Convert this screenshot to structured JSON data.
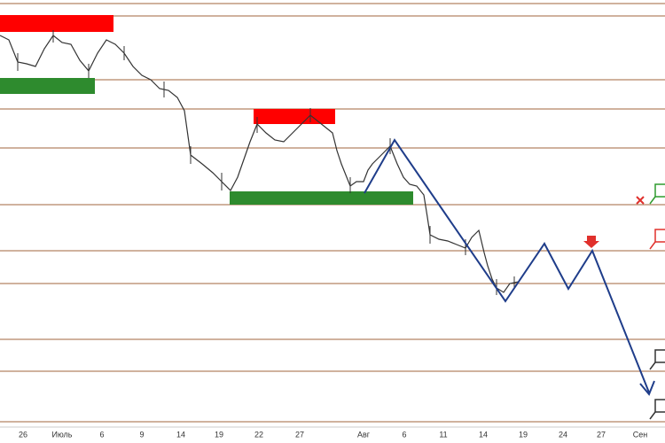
{
  "x_axis": {
    "labels": [
      "26",
      "Июль",
      "6",
      "9",
      "14",
      "19",
      "22",
      "27",
      "Авг",
      "6",
      "11",
      "14",
      "19",
      "24",
      "27",
      "Сен"
    ]
  }
}
